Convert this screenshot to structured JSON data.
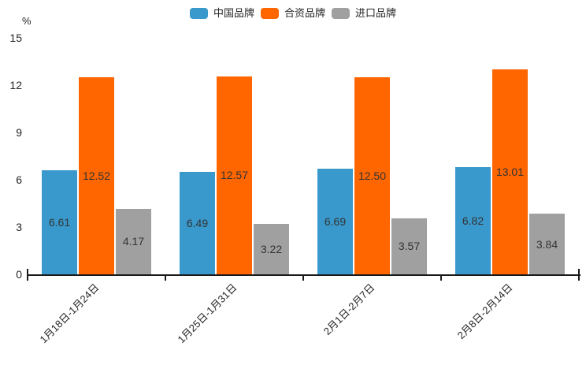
{
  "chart_data": {
    "type": "bar",
    "title": "",
    "categories": [
      "1月18日-1月24日",
      "1月25日-1月31日",
      "2月1日-2月7日",
      "2月8日-2月14日"
    ],
    "series": [
      {
        "name": "中国品牌",
        "color": "#3999CC",
        "values": [
          6.61,
          6.49,
          6.69,
          6.82
        ]
      },
      {
        "name": "合资品牌",
        "color": "#FF6600",
        "values": [
          12.52,
          12.57,
          12.5,
          13.01
        ]
      },
      {
        "name": "进口品牌",
        "color": "#A0A0A0",
        "values": [
          4.17,
          3.22,
          3.57,
          3.84
        ]
      }
    ],
    "xlabel": "",
    "ylabel": "%",
    "ylim": [
      0,
      15
    ],
    "yticks": [
      0,
      3,
      6,
      9,
      12,
      15
    ],
    "value_label_decimals": 2,
    "grid": false,
    "legend_position": "top"
  },
  "colors": {
    "axis": "#1a1a1a",
    "value_text": "#333333",
    "tick_text": "#262626",
    "background": "#ffffff"
  }
}
